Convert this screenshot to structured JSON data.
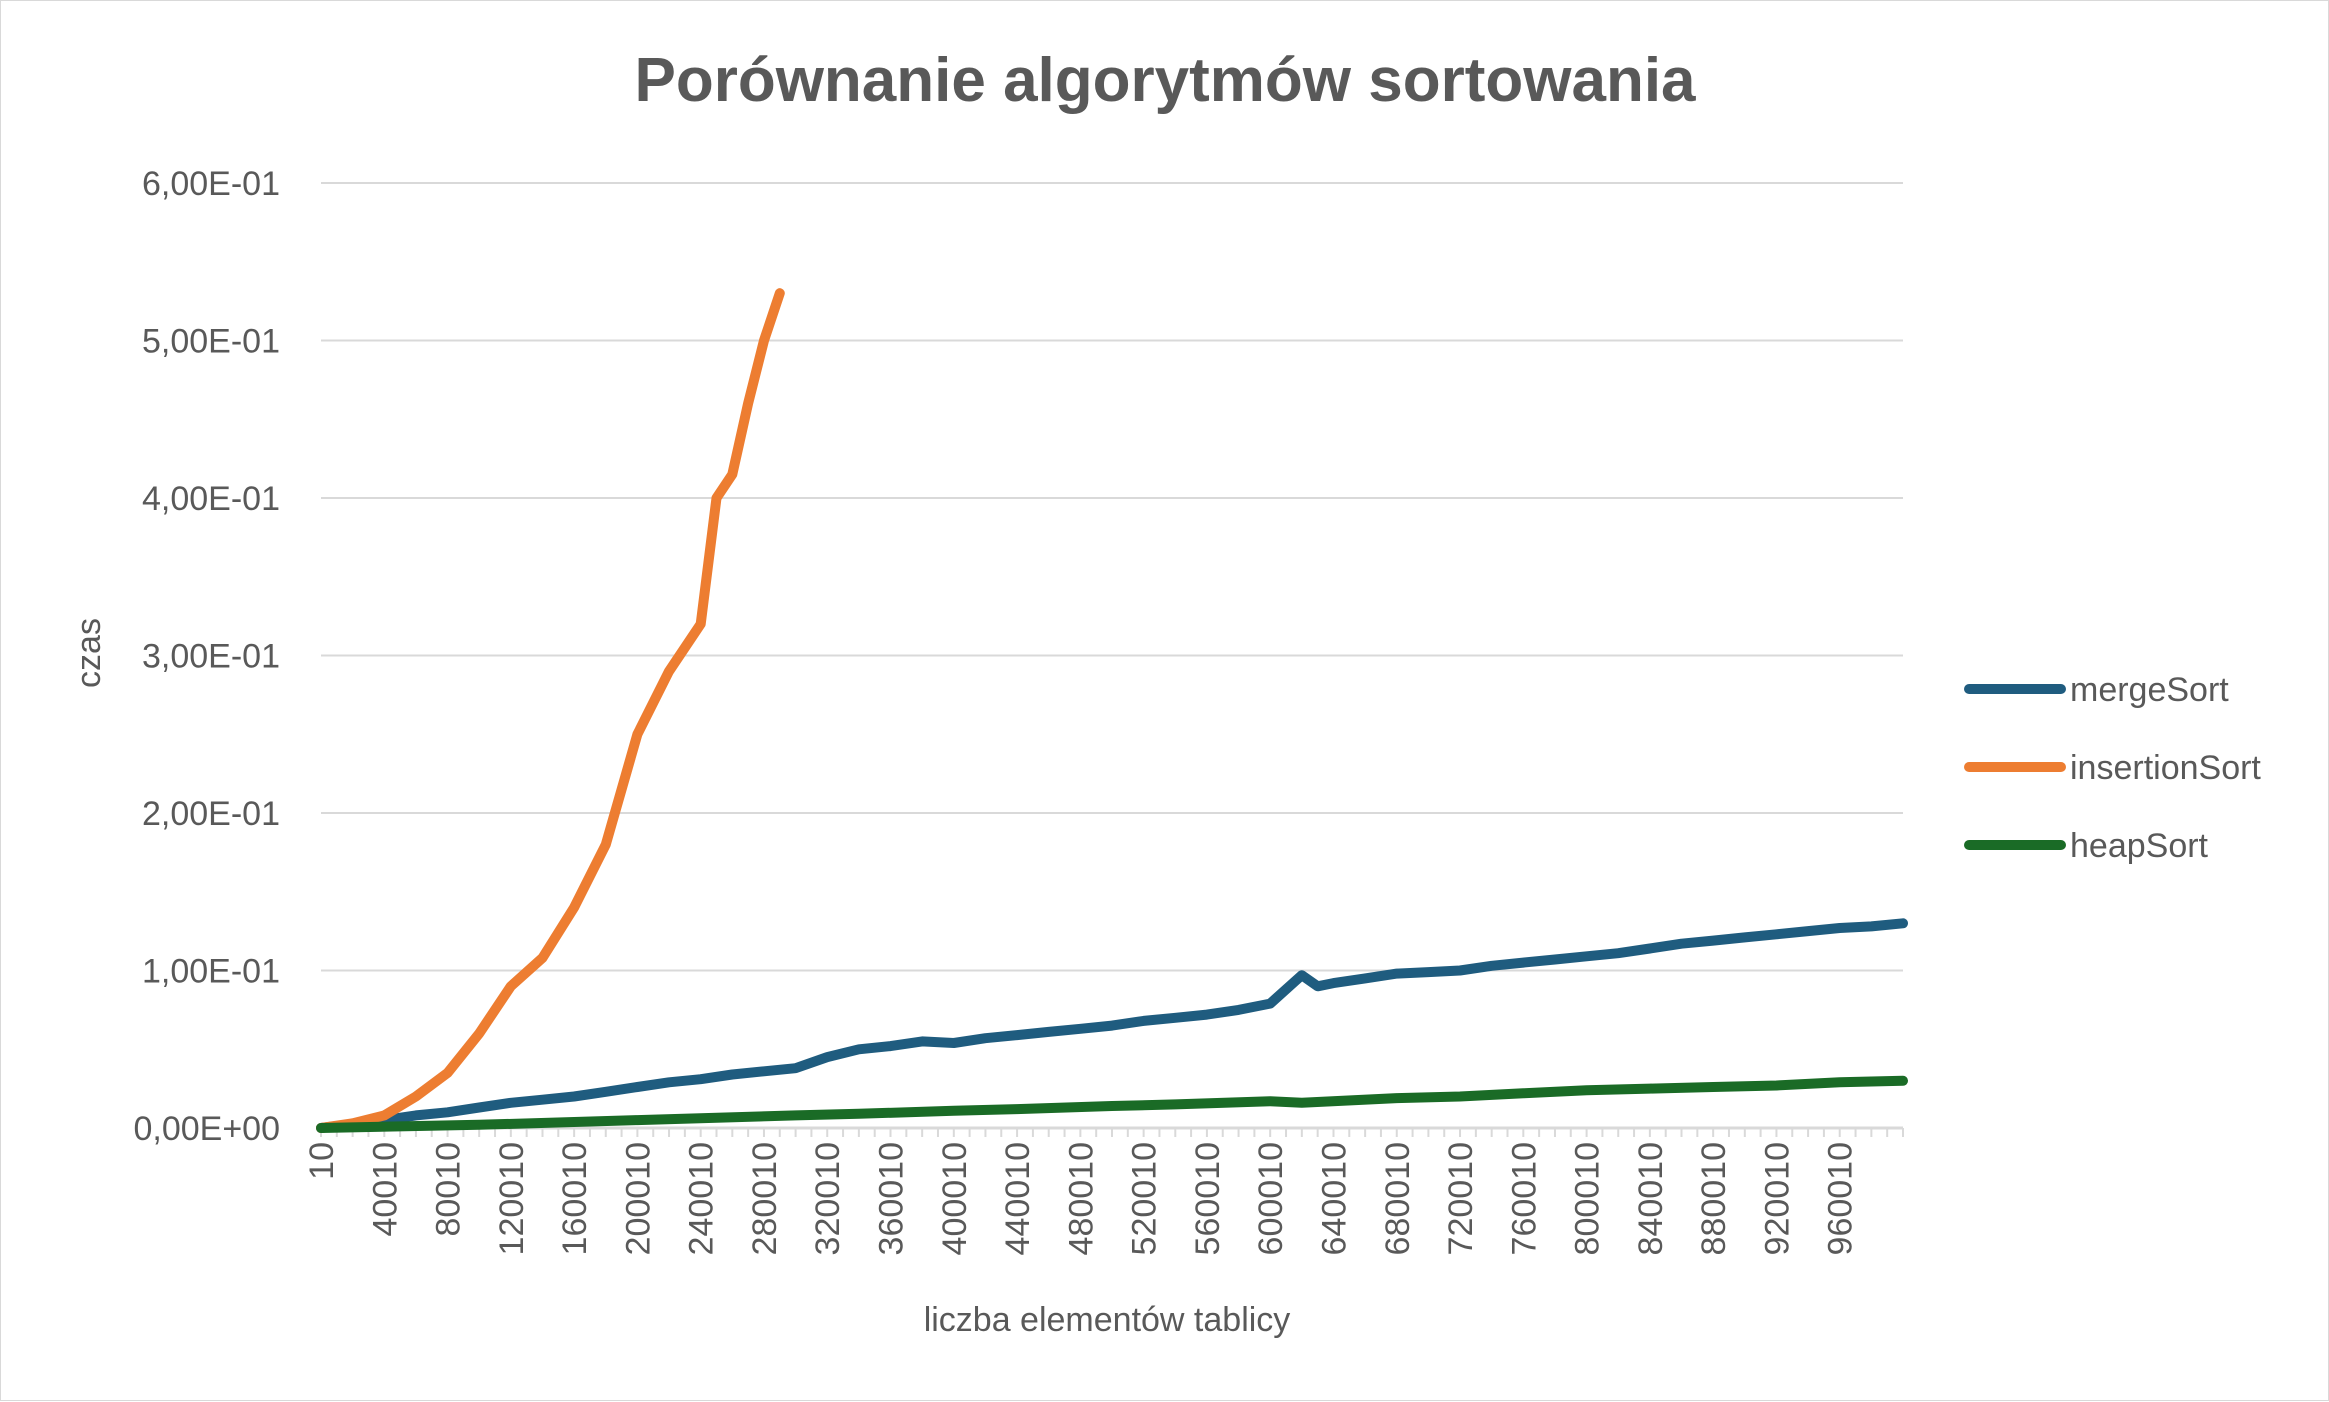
{
  "chart_data": {
    "type": "line",
    "title": "Porównanie algorytmów sortowania",
    "xlabel": "liczba elementów tablicy",
    "ylabel": "czas",
    "x_tick_labels": [
      "10",
      "40010",
      "80010",
      "120010",
      "160010",
      "200010",
      "240010",
      "280010",
      "320010",
      "360010",
      "400010",
      "440010",
      "480010",
      "520010",
      "560010",
      "600010",
      "640010",
      "680010",
      "720010",
      "760010",
      "800010",
      "840010",
      "880010",
      "920010",
      "960010"
    ],
    "y_tick_labels": [
      "0,00E+00",
      "1,00E-01",
      "2,00E-01",
      "3,00E-01",
      "4,00E-01",
      "5,00E-01",
      "6,00E-01"
    ],
    "ylim": [
      0,
      0.6
    ],
    "xlim": [
      10,
      1000010
    ],
    "grid": true,
    "legend_position": "right",
    "series": [
      {
        "name": "mergeSort",
        "color": "#1f5c7f",
        "points": [
          [
            10,
            0
          ],
          [
            40010,
            0.005
          ],
          [
            60010,
            0.008
          ],
          [
            80010,
            0.01
          ],
          [
            100010,
            0.013
          ],
          [
            120010,
            0.016
          ],
          [
            140010,
            0.018
          ],
          [
            160010,
            0.02
          ],
          [
            180010,
            0.023
          ],
          [
            200010,
            0.026
          ],
          [
            220010,
            0.029
          ],
          [
            240010,
            0.031
          ],
          [
            260010,
            0.034
          ],
          [
            280010,
            0.036
          ],
          [
            300010,
            0.038
          ],
          [
            320010,
            0.045
          ],
          [
            340010,
            0.05
          ],
          [
            360010,
            0.052
          ],
          [
            380010,
            0.055
          ],
          [
            400010,
            0.054
          ],
          [
            420010,
            0.057
          ],
          [
            440010,
            0.059
          ],
          [
            460010,
            0.061
          ],
          [
            480010,
            0.063
          ],
          [
            500010,
            0.065
          ],
          [
            520010,
            0.068
          ],
          [
            540010,
            0.07
          ],
          [
            560010,
            0.072
          ],
          [
            580010,
            0.075
          ],
          [
            600010,
            0.079
          ],
          [
            620010,
            0.097
          ],
          [
            630010,
            0.09
          ],
          [
            640010,
            0.092
          ],
          [
            660010,
            0.095
          ],
          [
            680010,
            0.098
          ],
          [
            700010,
            0.099
          ],
          [
            720010,
            0.1
          ],
          [
            740010,
            0.103
          ],
          [
            760010,
            0.105
          ],
          [
            780010,
            0.107
          ],
          [
            800010,
            0.109
          ],
          [
            820010,
            0.111
          ],
          [
            840010,
            0.114
          ],
          [
            860010,
            0.117
          ],
          [
            880010,
            0.119
          ],
          [
            900010,
            0.121
          ],
          [
            920010,
            0.123
          ],
          [
            940010,
            0.125
          ],
          [
            960010,
            0.127
          ],
          [
            980010,
            0.128
          ],
          [
            1000010,
            0.13
          ]
        ]
      },
      {
        "name": "insertionSort",
        "color": "#ed7d31",
        "points": [
          [
            10,
            0
          ],
          [
            20010,
            0.003
          ],
          [
            40010,
            0.008
          ],
          [
            60010,
            0.02
          ],
          [
            80010,
            0.035
          ],
          [
            100010,
            0.06
          ],
          [
            120010,
            0.09
          ],
          [
            140010,
            0.108
          ],
          [
            160010,
            0.14
          ],
          [
            180010,
            0.18
          ],
          [
            200010,
            0.25
          ],
          [
            220010,
            0.29
          ],
          [
            240010,
            0.32
          ],
          [
            250010,
            0.4
          ],
          [
            260010,
            0.415
          ],
          [
            270010,
            0.46
          ],
          [
            280010,
            0.5
          ],
          [
            290010,
            0.53
          ]
        ]
      },
      {
        "name": "heapSort",
        "color": "#1a6b26",
        "points": [
          [
            10,
            0
          ],
          [
            100010,
            0.002
          ],
          [
            200010,
            0.005
          ],
          [
            300010,
            0.008
          ],
          [
            340010,
            0.009
          ],
          [
            400010,
            0.011
          ],
          [
            440010,
            0.012
          ],
          [
            500010,
            0.014
          ],
          [
            540010,
            0.015
          ],
          [
            600010,
            0.017
          ],
          [
            620010,
            0.016
          ],
          [
            680010,
            0.019
          ],
          [
            720010,
            0.02
          ],
          [
            760010,
            0.022
          ],
          [
            800010,
            0.024
          ],
          [
            840010,
            0.025
          ],
          [
            880010,
            0.026
          ],
          [
            920010,
            0.027
          ],
          [
            960010,
            0.029
          ],
          [
            1000010,
            0.03
          ]
        ]
      }
    ]
  }
}
